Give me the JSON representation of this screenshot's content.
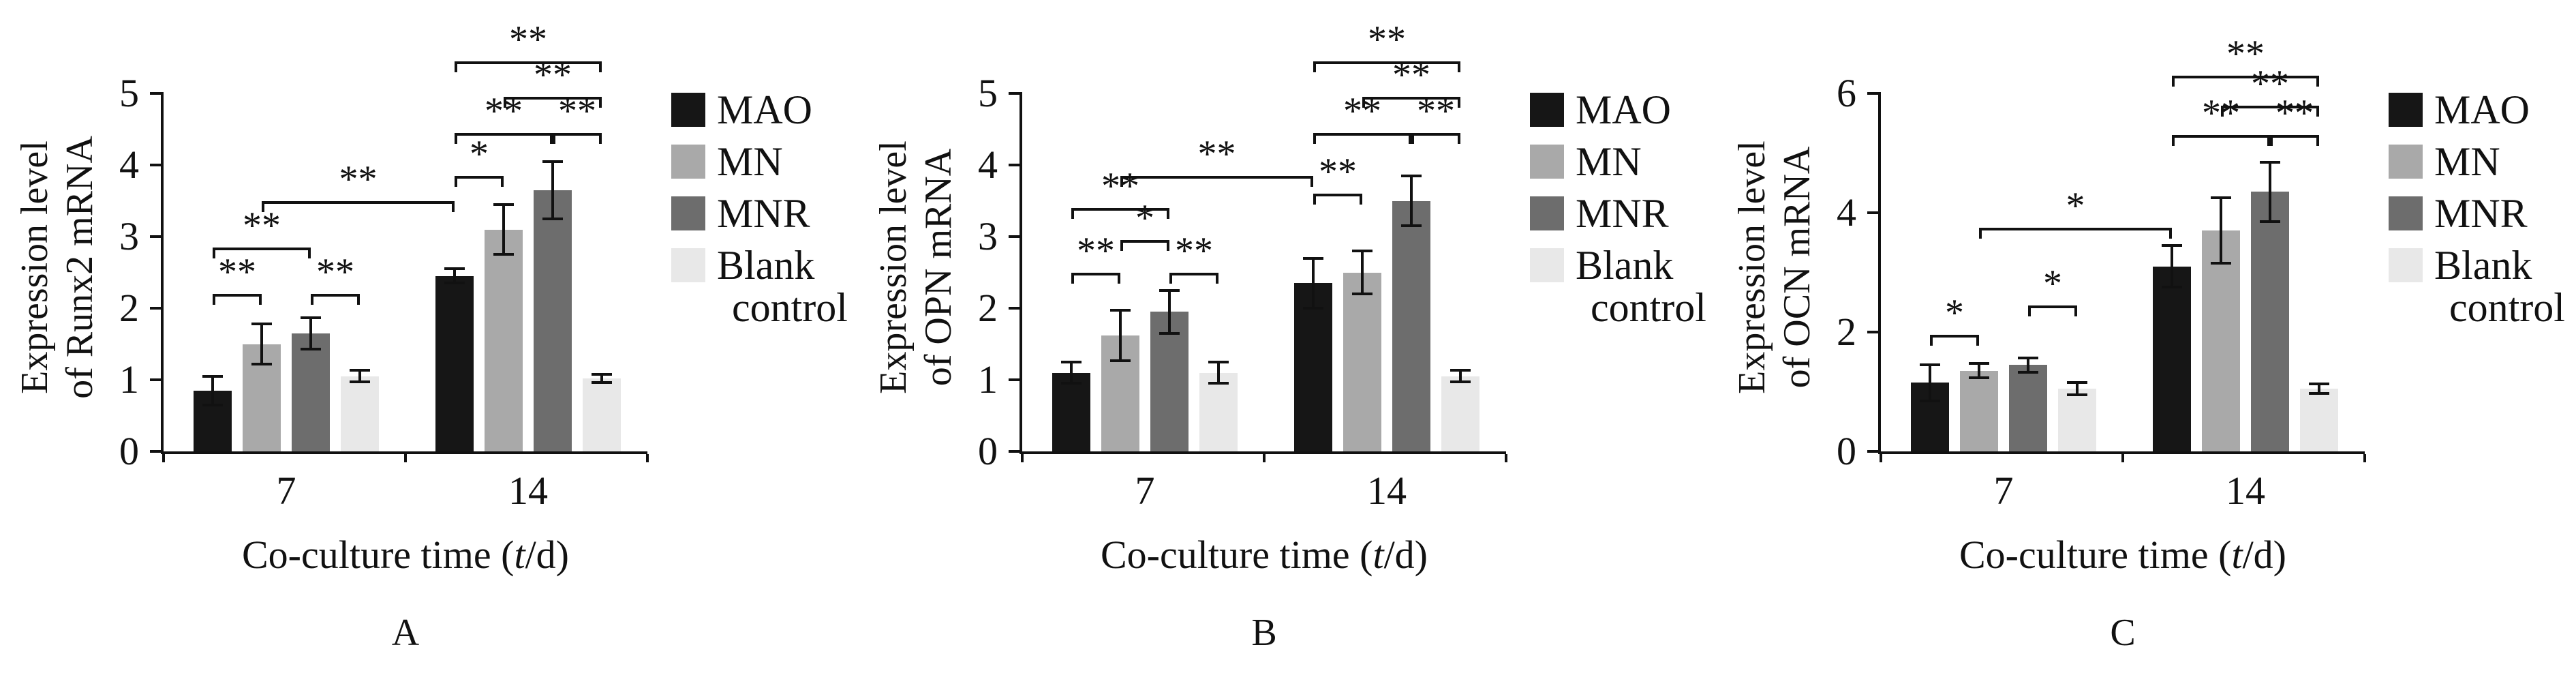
{
  "chart_data": [
    {
      "type": "bar",
      "panel_label": "A",
      "ylabel": "Expression level of Runx2 mRNA",
      "ylabel_lines": [
        "Expression level",
        "of Runx2 mRNA"
      ],
      "xlabel": "Co-culture time (t/d)",
      "xlabel_prefix": "Co-culture time (",
      "xlabel_italic": "t",
      "xlabel_suffix": "/d)",
      "categories": [
        "7",
        "14"
      ],
      "ylim": [
        0,
        5
      ],
      "yticks": [
        0,
        1,
        2,
        3,
        4,
        5
      ],
      "grid": false,
      "legend_position": "right",
      "series": [
        {
          "name": "MAO",
          "color": "#161616",
          "values": [
            0.85,
            2.45
          ],
          "errors": [
            0.2,
            0.1
          ]
        },
        {
          "name": "MN",
          "color": "#a9a9a9",
          "values": [
            1.5,
            3.1
          ],
          "errors": [
            0.28,
            0.35
          ]
        },
        {
          "name": "MNR",
          "color": "#6d6d6d",
          "values": [
            1.65,
            3.65
          ],
          "errors": [
            0.22,
            0.4
          ]
        },
        {
          "name": "Blank control",
          "color": "#e8e8e8",
          "values": [
            1.05,
            1.02
          ],
          "errors": [
            0.08,
            0.06
          ]
        }
      ],
      "significance": [
        {
          "from": 0,
          "to": 1,
          "y": 2.2,
          "label": "**"
        },
        {
          "from": 0,
          "to": 2,
          "y": 2.85,
          "label": "**"
        },
        {
          "from": 2,
          "to": 3,
          "y": 2.2,
          "label": "**"
        },
        {
          "from": 1,
          "to": 4,
          "y": 3.5,
          "label": "**"
        },
        {
          "from": 4,
          "to": 5,
          "y": 3.85,
          "label": "*"
        },
        {
          "from": 4,
          "to": 6,
          "y": 4.45,
          "label": "**"
        },
        {
          "from": 6,
          "to": 7,
          "y": 4.45,
          "label": "**"
        },
        {
          "from": 5,
          "to": 7,
          "y": 4.95,
          "label": "**"
        },
        {
          "from": 4,
          "to": 7,
          "y": 5.45,
          "label": "**"
        }
      ]
    },
    {
      "type": "bar",
      "panel_label": "B",
      "ylabel": "Expression level of OPN mRNA",
      "ylabel_lines": [
        "Expression level",
        "of OPN mRNA"
      ],
      "xlabel": "Co-culture time (t/d)",
      "xlabel_prefix": "Co-culture time (",
      "xlabel_italic": "t",
      "xlabel_suffix": "/d)",
      "categories": [
        "7",
        "14"
      ],
      "ylim": [
        0,
        5
      ],
      "yticks": [
        0,
        1,
        2,
        3,
        4,
        5
      ],
      "grid": false,
      "legend_position": "right",
      "series": [
        {
          "name": "MAO",
          "color": "#161616",
          "values": [
            1.1,
            2.35
          ],
          "errors": [
            0.15,
            0.35
          ]
        },
        {
          "name": "MN",
          "color": "#a9a9a9",
          "values": [
            1.62,
            2.5
          ],
          "errors": [
            0.35,
            0.3
          ]
        },
        {
          "name": "MNR",
          "color": "#6d6d6d",
          "values": [
            1.95,
            3.5
          ],
          "errors": [
            0.3,
            0.35
          ]
        },
        {
          "name": "Blank control",
          "color": "#e8e8e8",
          "values": [
            1.1,
            1.05
          ],
          "errors": [
            0.15,
            0.08
          ]
        }
      ],
      "significance": [
        {
          "from": 0,
          "to": 1,
          "y": 2.5,
          "label": "**"
        },
        {
          "from": 1,
          "to": 2,
          "y": 2.95,
          "label": "*"
        },
        {
          "from": 2,
          "to": 3,
          "y": 2.5,
          "label": "**"
        },
        {
          "from": 0,
          "to": 2,
          "y": 3.4,
          "label": "**"
        },
        {
          "from": 1,
          "to": 4,
          "y": 3.85,
          "label": "**"
        },
        {
          "from": 4,
          "to": 5,
          "y": 3.6,
          "label": "**"
        },
        {
          "from": 4,
          "to": 6,
          "y": 4.45,
          "label": "**"
        },
        {
          "from": 6,
          "to": 7,
          "y": 4.45,
          "label": "**"
        },
        {
          "from": 5,
          "to": 7,
          "y": 4.95,
          "label": "**"
        },
        {
          "from": 4,
          "to": 7,
          "y": 5.45,
          "label": "**"
        }
      ]
    },
    {
      "type": "bar",
      "panel_label": "C",
      "ylabel": "Expression level of OCN mRNA",
      "ylabel_lines": [
        "Expression level",
        "of OCN mRNA"
      ],
      "xlabel": "Co-culture time (t/d)",
      "xlabel_prefix": "Co-culture time (",
      "xlabel_italic": "t",
      "xlabel_suffix": "/d)",
      "categories": [
        "7",
        "14"
      ],
      "ylim": [
        0,
        6
      ],
      "yticks": [
        0,
        2,
        4,
        6
      ],
      "grid": false,
      "legend_position": "right",
      "series": [
        {
          "name": "MAO",
          "color": "#161616",
          "values": [
            1.15,
            3.1
          ],
          "errors": [
            0.3,
            0.35
          ]
        },
        {
          "name": "MN",
          "color": "#a9a9a9",
          "values": [
            1.35,
            3.7
          ],
          "errors": [
            0.12,
            0.55
          ]
        },
        {
          "name": "MNR",
          "color": "#6d6d6d",
          "values": [
            1.45,
            4.35
          ],
          "errors": [
            0.12,
            0.5
          ]
        },
        {
          "name": "Blank control",
          "color": "#e8e8e8",
          "values": [
            1.05,
            1.05
          ],
          "errors": [
            0.1,
            0.08
          ]
        }
      ],
      "significance": [
        {
          "from": 0,
          "to": 1,
          "y": 1.95,
          "label": "*"
        },
        {
          "from": 2,
          "to": 3,
          "y": 2.45,
          "label": "*"
        },
        {
          "from": 1,
          "to": 4,
          "y": 3.75,
          "label": "*"
        },
        {
          "from": 4,
          "to": 6,
          "y": 5.3,
          "label": "**"
        },
        {
          "from": 6,
          "to": 7,
          "y": 5.3,
          "label": "**"
        },
        {
          "from": 5,
          "to": 7,
          "y": 5.8,
          "label": "**"
        },
        {
          "from": 4,
          "to": 7,
          "y": 6.3,
          "label": "**"
        }
      ]
    }
  ]
}
